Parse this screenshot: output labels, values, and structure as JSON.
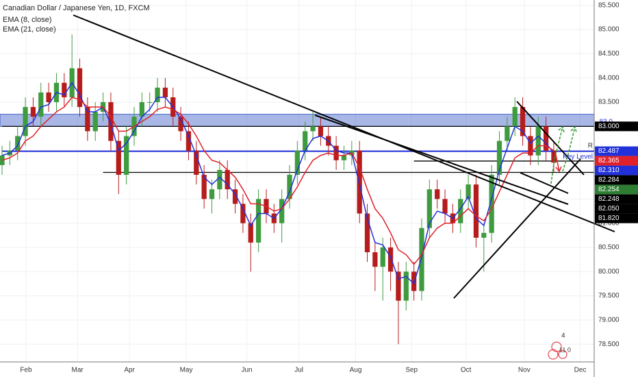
{
  "chart_data": {
    "type": "candlestick",
    "title": "Canadian Dollar / Japanese Yen, 1D, FXCM",
    "indicators": [
      {
        "name": "EMA (8, close)",
        "color": "#2130d8",
        "values": [
          82.4,
          82.45,
          82.6,
          83.0,
          83.1,
          83.4,
          83.45,
          83.7,
          83.65,
          83.9,
          83.65,
          83.3,
          83.3,
          83.4,
          83.05,
          82.5,
          82.65,
          82.9,
          83.2,
          83.35,
          83.6,
          83.6,
          83.4,
          83.15,
          82.8,
          82.4,
          81.95,
          81.8,
          81.95,
          81.8,
          81.6,
          81.3,
          80.95,
          81.2,
          81.2,
          81.1,
          81.3,
          81.65,
          82.1,
          82.5,
          82.75,
          82.8,
          82.7,
          82.5,
          82.45,
          82.45,
          81.8,
          81.1,
          80.6,
          80.55,
          80.3,
          79.85,
          79.9,
          79.75,
          80.3,
          81.0,
          81.25,
          81.2,
          81.1,
          81.3,
          81.55,
          81.1,
          80.95,
          81.5,
          82.1,
          82.55,
          83.0,
          82.9,
          82.65,
          82.8,
          82.65,
          82.45
        ]
      },
      {
        "name": "EMA (21, close)",
        "color": "#e0202a",
        "values": [
          82.3,
          82.35,
          82.45,
          82.7,
          82.8,
          83.0,
          83.15,
          83.3,
          83.4,
          83.6,
          83.55,
          83.4,
          83.4,
          83.4,
          83.2,
          82.9,
          82.9,
          83.0,
          83.1,
          83.2,
          83.35,
          83.4,
          83.35,
          83.25,
          83.05,
          82.8,
          82.5,
          82.3,
          82.25,
          82.1,
          81.95,
          81.7,
          81.4,
          81.4,
          81.35,
          81.25,
          81.3,
          81.5,
          81.75,
          82.05,
          82.3,
          82.4,
          82.45,
          82.4,
          82.4,
          82.45,
          82.15,
          81.7,
          81.3,
          81.1,
          80.8,
          80.45,
          80.35,
          80.15,
          80.35,
          80.7,
          80.9,
          81.0,
          81.0,
          81.15,
          81.3,
          81.15,
          81.05,
          81.3,
          81.65,
          82.0,
          82.35,
          82.45,
          82.45,
          82.6,
          82.6,
          82.5
        ]
      }
    ],
    "open": [
      82.2,
      82.4,
      82.5,
      82.8,
      83.4,
      83.2,
      83.7,
      83.5,
      83.9,
      83.6,
      84.2,
      83.4,
      82.9,
      83.3,
      83.5,
      82.7,
      82.0,
      82.8,
      83.2,
      83.5,
      83.5,
      83.8,
      83.6,
      83.2,
      82.9,
      82.5,
      82.0,
      81.5,
      81.7,
      82.1,
      81.7,
      81.4,
      81.0,
      80.6,
      81.5,
      81.2,
      81.0,
      81.5,
      82.0,
      82.5,
      82.9,
      83.0,
      82.8,
      82.6,
      82.3,
      82.4,
      82.5,
      81.2,
      80.4,
      80.1,
      80.5,
      80.0,
      79.4,
      80.0,
      79.6,
      80.9,
      81.7,
      81.5,
      81.2,
      81.0,
      81.5,
      81.8,
      80.7,
      80.8,
      82.0,
      82.7,
      83.0,
      83.4,
      82.8,
      82.4,
      83.0,
      82.5
    ],
    "high": [
      82.6,
      82.7,
      83.0,
      83.6,
      83.6,
      83.9,
      83.9,
      84.1,
      84.1,
      84.9,
      84.4,
      83.6,
      83.5,
      83.7,
      83.7,
      82.9,
      83.0,
      83.4,
      83.7,
      83.7,
      84.0,
      84.0,
      83.8,
      83.4,
      83.1,
      82.7,
      82.2,
      81.9,
      82.3,
      82.3,
      81.9,
      81.6,
      81.2,
      81.7,
      81.7,
      81.4,
      81.7,
      82.2,
      82.7,
      83.1,
      83.3,
      83.2,
      83.0,
      82.8,
      82.6,
      82.7,
      82.7,
      81.4,
      80.6,
      80.7,
      80.7,
      80.2,
      80.2,
      80.2,
      81.1,
      81.9,
      81.9,
      81.7,
      81.4,
      81.7,
      82.0,
      82.0,
      81.0,
      82.2,
      82.9,
      83.2,
      83.6,
      83.6,
      83.0,
      83.2,
      83.2,
      82.7
    ],
    "low": [
      82.0,
      82.2,
      82.3,
      82.6,
      83.0,
      83.0,
      83.3,
      83.3,
      83.4,
      83.4,
      83.2,
      82.7,
      82.7,
      83.1,
      82.5,
      81.6,
      81.8,
      82.6,
      83.0,
      83.3,
      83.3,
      83.4,
      83.0,
      82.7,
      82.3,
      81.8,
      81.3,
      81.2,
      81.5,
      81.5,
      81.2,
      80.8,
      80.0,
      80.4,
      81.0,
      80.8,
      80.6,
      81.3,
      81.8,
      82.3,
      82.7,
      82.6,
      82.4,
      82.1,
      82.1,
      82.2,
      81.0,
      80.2,
      79.6,
      79.4,
      79.6,
      78.5,
      79.2,
      79.4,
      79.4,
      80.7,
      81.3,
      81.0,
      80.8,
      80.8,
      81.3,
      80.5,
      80.0,
      80.6,
      81.8,
      82.5,
      82.8,
      82.6,
      82.2,
      82.2,
      82.3,
      82.05
    ],
    "close": [
      82.4,
      82.5,
      82.8,
      83.4,
      83.2,
      83.7,
      83.5,
      83.9,
      83.6,
      84.2,
      83.4,
      82.9,
      83.3,
      83.5,
      82.7,
      82.0,
      82.8,
      83.2,
      83.5,
      83.5,
      83.8,
      83.6,
      83.2,
      82.9,
      82.5,
      82.0,
      81.5,
      81.7,
      82.1,
      81.7,
      81.4,
      81.0,
      80.6,
      81.5,
      81.2,
      81.0,
      81.5,
      82.0,
      82.5,
      82.9,
      83.0,
      82.8,
      82.6,
      82.3,
      82.4,
      82.5,
      81.2,
      80.4,
      80.1,
      80.5,
      80.0,
      79.4,
      80.0,
      79.6,
      80.9,
      81.7,
      81.5,
      81.2,
      81.0,
      81.5,
      81.8,
      80.7,
      80.8,
      82.0,
      82.7,
      83.0,
      83.4,
      82.8,
      82.4,
      83.0,
      82.5,
      82.25
    ],
    "up_color": "#3f9b3f",
    "down_color": "#b71c1c",
    "xlim": [
      -0.264,
      76.2
    ],
    "xticks": [
      {
        "value": 3.08,
        "label": "Feb"
      },
      {
        "value": 9.7,
        "label": "Mar"
      },
      {
        "value": 16.4,
        "label": "Apr"
      },
      {
        "value": 23.7,
        "label": "May"
      },
      {
        "value": 31.5,
        "label": "Jun"
      },
      {
        "value": 38.2,
        "label": "Jul"
      },
      {
        "value": 45.5,
        "label": "Aug"
      },
      {
        "value": 52.7,
        "label": "Sep"
      },
      {
        "value": 59.7,
        "label": "Oct"
      },
      {
        "value": 67.2,
        "label": "Nov"
      },
      {
        "value": 74.4,
        "label": "Dec"
      }
    ],
    "ylim": [
      78.22,
      85.61
    ],
    "yticks": [
      {
        "value": 78.5,
        "label": "78.500"
      },
      {
        "value": 79,
        "label": "79.000"
      },
      {
        "value": 79.5,
        "label": "79.500"
      },
      {
        "value": 80,
        "label": "80.000"
      },
      {
        "value": 80.5,
        "label": "80.500"
      },
      {
        "value": 81,
        "label": "81.000"
      },
      {
        "value": 81.5,
        "label": "81.500"
      },
      {
        "value": 82,
        "label": "82.000"
      },
      {
        "value": 82.5,
        "label": "82.500"
      },
      {
        "value": 83,
        "label": "83.000"
      },
      {
        "value": 83.5,
        "label": "83.500"
      },
      {
        "value": 84,
        "label": "84.000"
      },
      {
        "value": 84.5,
        "label": "84.500"
      },
      {
        "value": 85,
        "label": "85.000"
      },
      {
        "value": 85.5,
        "label": "85.500"
      }
    ],
    "zone": {
      "from": 83,
      "to": 83.25,
      "color": "#3f5fc8"
    },
    "levels": [
      {
        "value": 83,
        "label": "83.000",
        "color": "#000000",
        "line": true,
        "from": 0
      },
      {
        "value": 82.487,
        "label": "82.487",
        "color": "#2130d8",
        "line": true,
        "from": 0
      },
      {
        "value": 82.365,
        "label": "82.365",
        "color": "#e0202a",
        "line": false
      },
      {
        "value": 82.31,
        "label": "82.310",
        "color": "#2130d8",
        "line": false
      },
      {
        "value": 82.284,
        "label": "82.284",
        "color": "#000000",
        "line": true,
        "from": 53
      },
      {
        "value": 82.254,
        "label": "82.254",
        "color": "#2e7d32",
        "line": false
      },
      {
        "value": 82.248,
        "label": "82.248",
        "color": "#000000",
        "line": false
      },
      {
        "value": 82.05,
        "label": "82.050",
        "color": "#000000",
        "line": true,
        "from": 13
      },
      {
        "value": 81.82,
        "label": "81.820",
        "color": "#000000",
        "line": false
      }
    ],
    "annotations": {
      "zone_label": "83.0",
      "resistance": "R",
      "key_level": "Key Level",
      "events_count": "4",
      "events_label": "11 0"
    }
  }
}
